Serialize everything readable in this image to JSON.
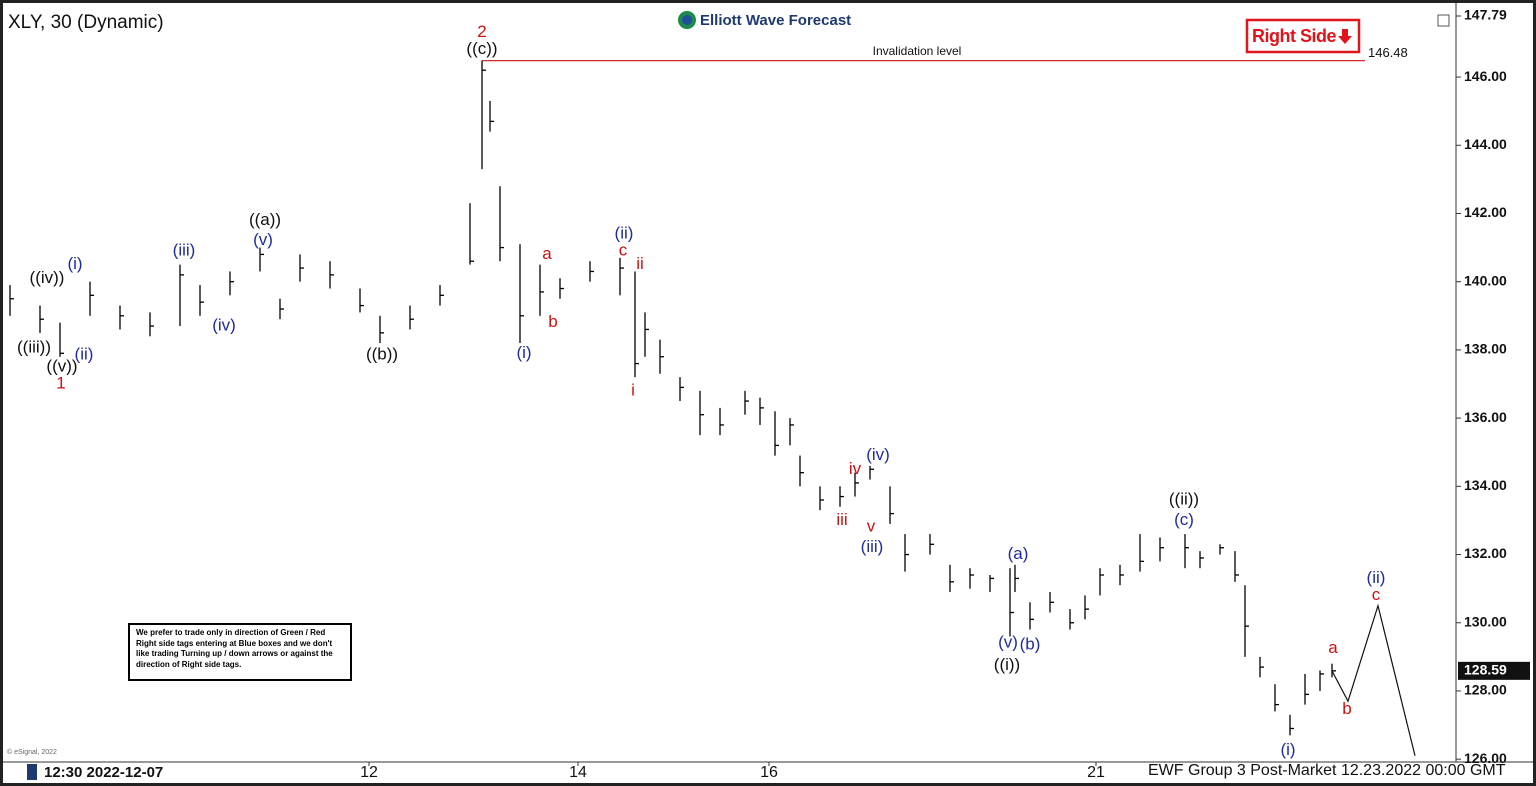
{
  "header": {
    "symbol": "XLY, 30 (Dynamic)",
    "logo": "Elliott Wave Forecast",
    "tag": "Right Side"
  },
  "note": "We prefer to trade only in direction of Green / Red Right side tags entering at Blue boxes and we don't like trading Turning up / down arrows or against the direction of Right side tags.",
  "footer": {
    "start": "12:30 2022-12-07",
    "status": "EWF Group 3 Post-Market 12.23.2022 00:00 GMT",
    "credit": "© eSignal, 2022"
  },
  "chart_data": {
    "type": "ohlc",
    "color": "#000000",
    "x": [
      1,
      4,
      6,
      9,
      12,
      15,
      18,
      20,
      23,
      26,
      28,
      30,
      33,
      36,
      38,
      41,
      44,
      47,
      48.2,
      49,
      50,
      52,
      54,
      56,
      59,
      62,
      63.5,
      64.5,
      66,
      68,
      70,
      72,
      74.5,
      76,
      77.5,
      79,
      80,
      82,
      84,
      85.5,
      87,
      89,
      90.5,
      93,
      95,
      97,
      99,
      101,
      101.5,
      103,
      105,
      107,
      108.5,
      110,
      112,
      114,
      116,
      118.5,
      120,
      122,
      123.5,
      124.5,
      126,
      127.5,
      129,
      130.5,
      132,
      133.2
    ],
    "high": [
      139.9,
      139.3,
      138.8,
      140.0,
      139.3,
      139.1,
      140.5,
      139.9,
      140.3,
      141.0,
      139.5,
      140.8,
      140.6,
      139.8,
      139.0,
      139.3,
      139.9,
      142.3,
      146.48,
      145.3,
      142.8,
      141.1,
      140.5,
      140.1,
      140.6,
      140.7,
      140.3,
      139.1,
      138.3,
      137.2,
      136.8,
      136.3,
      136.8,
      136.6,
      136.2,
      136.0,
      134.9,
      134.0,
      134.0,
      134.4,
      134.6,
      134.0,
      132.6,
      132.6,
      131.7,
      131.6,
      131.4,
      131.6,
      131.7,
      130.6,
      130.9,
      130.4,
      130.8,
      131.6,
      131.7,
      132.6,
      132.5,
      132.6,
      132.1,
      132.3,
      132.1,
      131.1,
      129.0,
      128.2,
      127.3,
      128.5,
      128.6,
      128.8
    ],
    "low": [
      139.0,
      138.5,
      137.8,
      139.0,
      138.6,
      138.4,
      138.7,
      139.0,
      139.6,
      140.3,
      138.9,
      140.0,
      139.8,
      139.1,
      138.2,
      138.6,
      139.3,
      140.5,
      143.3,
      144.4,
      140.6,
      138.2,
      139.0,
      139.5,
      140.0,
      139.6,
      137.2,
      137.8,
      137.3,
      136.5,
      135.5,
      135.5,
      136.1,
      135.8,
      134.9,
      135.2,
      134.0,
      133.3,
      133.4,
      133.7,
      134.2,
      132.9,
      131.5,
      132.0,
      130.9,
      131.0,
      130.9,
      129.6,
      130.9,
      129.8,
      130.3,
      129.8,
      130.1,
      130.8,
      131.1,
      131.5,
      131.8,
      131.6,
      131.6,
      132.0,
      131.2,
      129.0,
      128.4,
      127.4,
      126.7,
      127.6,
      128.0,
      128.4
    ],
    "close": [
      139.5,
      138.9,
      137.9,
      139.6,
      139.0,
      138.7,
      140.2,
      139.4,
      140.0,
      140.8,
      139.2,
      140.4,
      140.2,
      139.3,
      138.5,
      138.9,
      139.6,
      140.6,
      146.2,
      144.7,
      141.0,
      139.0,
      139.7,
      139.8,
      140.3,
      140.4,
      137.6,
      138.6,
      137.8,
      136.9,
      136.1,
      135.8,
      136.5,
      136.3,
      135.2,
      135.8,
      134.4,
      133.6,
      133.7,
      134.1,
      134.5,
      133.2,
      132.0,
      132.3,
      131.2,
      131.4,
      131.3,
      130.3,
      131.3,
      130.1,
      130.6,
      130.0,
      130.4,
      131.4,
      131.4,
      131.8,
      132.2,
      132.2,
      131.9,
      132.2,
      131.4,
      129.9,
      128.7,
      127.6,
      126.9,
      127.9,
      128.5,
      128.59
    ],
    "xlim": [
      0,
      145.5
    ],
    "xticks": [
      {
        "value": 36.9,
        "label": "12"
      },
      {
        "value": 57.8,
        "label": "14"
      },
      {
        "value": 76.9,
        "label": "16"
      },
      {
        "value": 109.6,
        "label": "21"
      }
    ],
    "ylim": [
      125.8,
      147.79
    ],
    "yticks": [
      {
        "value": 126,
        "label": "126.00"
      },
      {
        "value": 128,
        "label": "128.00"
      },
      {
        "value": 130,
        "label": "130.00"
      },
      {
        "value": 132,
        "label": "132.00"
      },
      {
        "value": 134,
        "label": "134.00"
      },
      {
        "value": 136,
        "label": "136.00"
      },
      {
        "value": 138,
        "label": "138.00"
      },
      {
        "value": 140,
        "label": "140.00"
      },
      {
        "value": 142,
        "label": "142.00"
      },
      {
        "value": 144,
        "label": "144.00"
      },
      {
        "value": 146,
        "label": "146.00"
      }
    ],
    "last_price": 128.59,
    "invalidation": {
      "label": "Invalidation level",
      "value": 146.48,
      "color": "#cc1111"
    },
    "projection": {
      "x": [
        133.2,
        134.8,
        137.8,
        141.5
      ],
      "y": [
        128.59,
        127.7,
        130.5,
        126.1
      ]
    },
    "annotations": [
      {
        "text": "2",
        "x": 48.2,
        "y": 147.3,
        "color": "#cc1111"
      },
      {
        "text": "((c))",
        "x": 48.2,
        "y": 146.8,
        "color": "#111111"
      },
      {
        "text": "((iv))",
        "x": 4.7,
        "y": 140.1,
        "color": "#111111"
      },
      {
        "text": "(i)",
        "x": 7.5,
        "y": 140.5,
        "color": "#1f2b9c"
      },
      {
        "text": "((iii))",
        "x": 3.4,
        "y": 138.05,
        "color": "#111111"
      },
      {
        "text": "((v))",
        "x": 6.2,
        "y": 137.5,
        "color": "#111111"
      },
      {
        "text": "1",
        "x": 6.1,
        "y": 137.0,
        "color": "#cc1111"
      },
      {
        "text": "(ii)",
        "x": 8.4,
        "y": 137.85,
        "color": "#1f2b9c"
      },
      {
        "text": "(iii)",
        "x": 18.4,
        "y": 140.9,
        "color": "#1f2b9c"
      },
      {
        "text": "((a))",
        "x": 26.5,
        "y": 141.8,
        "color": "#111111"
      },
      {
        "text": "(v)",
        "x": 26.3,
        "y": 141.2,
        "color": "#1f2b9c"
      },
      {
        "text": "(iv)",
        "x": 22.4,
        "y": 138.7,
        "color": "#1f2b9c"
      },
      {
        "text": "((b))",
        "x": 38.2,
        "y": 137.85,
        "color": "#111111"
      },
      {
        "text": "(i)",
        "x": 52.4,
        "y": 137.9,
        "color": "#1f2b9c"
      },
      {
        "text": "a",
        "x": 54.7,
        "y": 140.8,
        "color": "#cc1111"
      },
      {
        "text": "b",
        "x": 55.3,
        "y": 138.8,
        "color": "#cc1111"
      },
      {
        "text": "(ii)",
        "x": 62.4,
        "y": 141.4,
        "color": "#1f2b9c"
      },
      {
        "text": "c",
        "x": 62.3,
        "y": 140.9,
        "color": "#cc1111"
      },
      {
        "text": "ii",
        "x": 64,
        "y": 140.5,
        "color": "#cc1111"
      },
      {
        "text": "i",
        "x": 63.3,
        "y": 136.8,
        "color": "#cc1111"
      },
      {
        "text": "iv",
        "x": 85.5,
        "y": 134.5,
        "color": "#cc1111"
      },
      {
        "text": "(iv)",
        "x": 87.8,
        "y": 134.9,
        "color": "#1f2b9c"
      },
      {
        "text": "iii",
        "x": 84.2,
        "y": 133.0,
        "color": "#cc1111"
      },
      {
        "text": "v",
        "x": 87.1,
        "y": 132.8,
        "color": "#cc1111"
      },
      {
        "text": "(iii)",
        "x": 87.2,
        "y": 132.2,
        "color": "#1f2b9c"
      },
      {
        "text": "(a)",
        "x": 101.8,
        "y": 132.0,
        "color": "#1f2b9c"
      },
      {
        "text": "(v)",
        "x": 100.8,
        "y": 129.4,
        "color": "#1f2b9c"
      },
      {
        "text": "(b)",
        "x": 103,
        "y": 129.35,
        "color": "#1f2b9c"
      },
      {
        "text": "((i))",
        "x": 100.7,
        "y": 128.75,
        "color": "#111111"
      },
      {
        "text": "((ii))",
        "x": 118.4,
        "y": 133.6,
        "color": "#111111"
      },
      {
        "text": "(c)",
        "x": 118.4,
        "y": 133.0,
        "color": "#1f2b9c"
      },
      {
        "text": "(i)",
        "x": 128.8,
        "y": 126.25,
        "color": "#1f2b9c"
      },
      {
        "text": "(ii)",
        "x": 137.6,
        "y": 131.3,
        "color": "#1f2b9c"
      },
      {
        "text": "c",
        "x": 137.6,
        "y": 130.8,
        "color": "#cc1111"
      },
      {
        "text": "a",
        "x": 133.3,
        "y": 129.25,
        "color": "#cc1111"
      },
      {
        "text": "b",
        "x": 134.7,
        "y": 127.45,
        "color": "#cc1111"
      }
    ]
  }
}
